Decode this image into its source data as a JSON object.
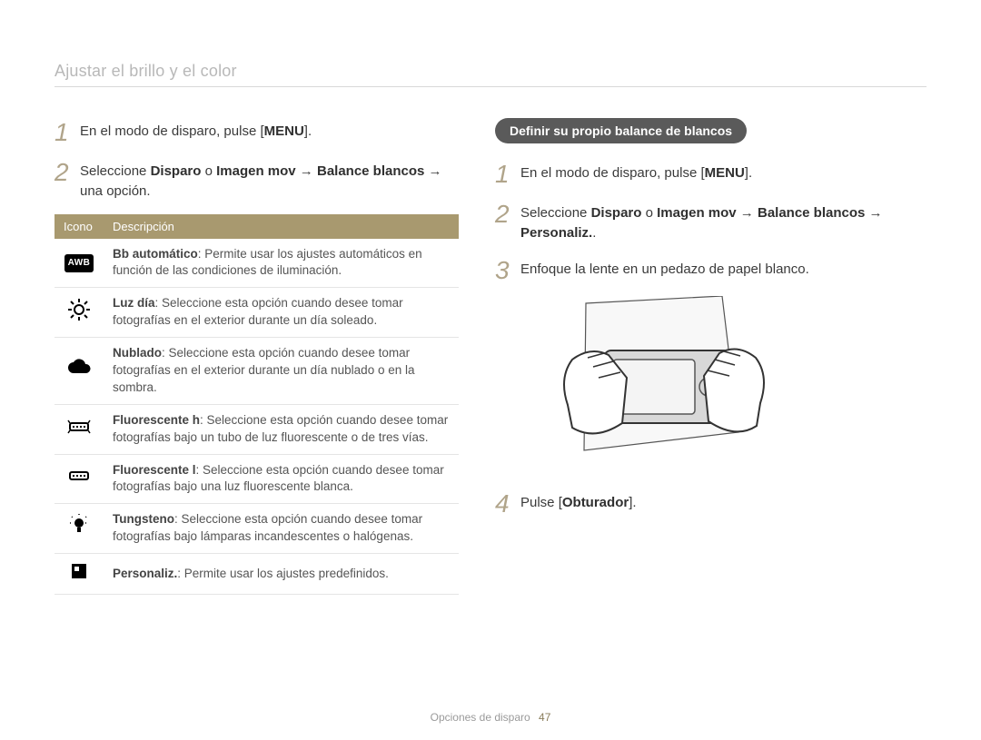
{
  "page_title": "Ajustar el brillo y el color",
  "left": {
    "steps": [
      {
        "num": "1",
        "html": "En el modo de disparo, pulse [<b class='menu-btn'>MENU</b>]."
      },
      {
        "num": "2",
        "html": "Seleccione <b>Disparo</b> o <b>Imagen mov</b> → <b>Balance blancos</b> → una opción."
      }
    ],
    "table": {
      "head_icon": "Icono",
      "head_desc": "Descripción",
      "rows": [
        {
          "icon": "awb",
          "bold": "Bb automático",
          "rest": ": Permite usar los ajustes automáticos en función de las condiciones de iluminación."
        },
        {
          "icon": "sun",
          "bold": "Luz día",
          "rest": ": Seleccione esta opción cuando desee tomar fotografías en el exterior durante un día soleado."
        },
        {
          "icon": "cloud",
          "bold": "Nublado",
          "rest": ": Seleccione esta opción cuando desee tomar fotografías en el exterior durante un día nublado o en la sombra."
        },
        {
          "icon": "fluoh",
          "bold": "Fluorescente h",
          "rest": ": Seleccione esta opción cuando desee tomar fotografías bajo un tubo de luz fluorescente o de tres vías."
        },
        {
          "icon": "fluol",
          "bold": "Fluorescente l",
          "rest": ": Seleccione esta opción cuando desee tomar fotografías bajo una luz fluorescente blanca."
        },
        {
          "icon": "bulb",
          "bold": "Tungsteno",
          "rest": ": Seleccione esta opción cuando desee tomar fotografías bajo lámparas incandescentes o halógenas."
        },
        {
          "icon": "custom",
          "bold": "Personaliz.",
          "rest": ": Permite usar los ajustes predefinidos."
        }
      ]
    }
  },
  "right": {
    "pill": "Definir su propio balance de blancos",
    "steps": [
      {
        "num": "1",
        "html": "En el modo de disparo, pulse [<b class='menu-btn'>MENU</b>]."
      },
      {
        "num": "2",
        "html": "Seleccione <b>Disparo</b> o <b>Imagen mov</b> → <b>Balance blancos</b> → <b>Personaliz.</b>."
      },
      {
        "num": "3",
        "html": "Enfoque la lente en un pedazo de papel blanco."
      },
      {
        "num": "4",
        "html": "Pulse [<b>Obturador</b>]."
      }
    ]
  },
  "footer": {
    "text": "Opciones de disparo",
    "page": "47"
  },
  "icons": {
    "awb_text": "AWB"
  },
  "colors": {
    "title": "#b8b8b8",
    "accent": "#a8996f",
    "stepnum": "#b0a48a",
    "text": "#3a3a3a"
  }
}
